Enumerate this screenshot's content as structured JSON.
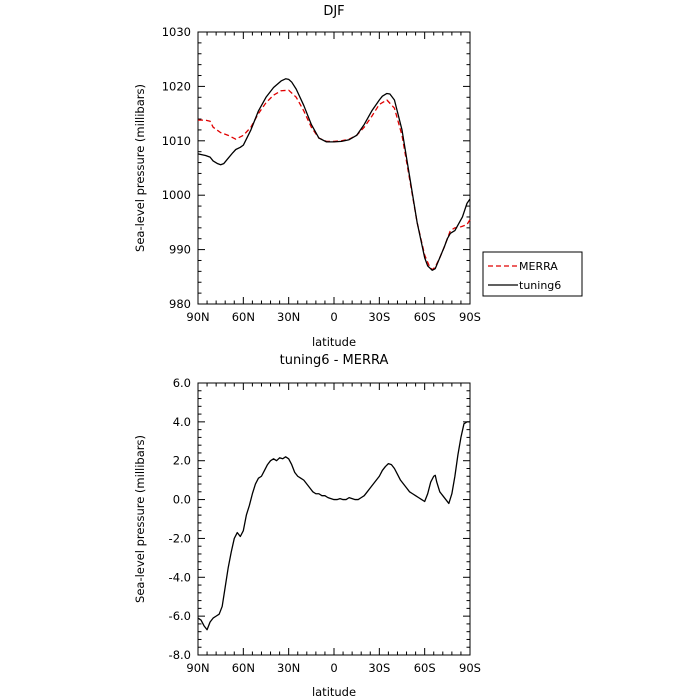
{
  "chart_data": [
    {
      "type": "line",
      "title": "DJF",
      "xlabel": "latitude",
      "ylabel": "Sea-level pressure (millibars)",
      "xlim": [
        90,
        -90
      ],
      "ylim": [
        980,
        1030
      ],
      "x_ticks": [
        90,
        60,
        30,
        0,
        -30,
        -60,
        -90
      ],
      "x_tick_labels": [
        "90N",
        "60N",
        "30N",
        "0",
        "30S",
        "60S",
        "90S"
      ],
      "y_ticks": [
        980,
        990,
        1000,
        1010,
        1020,
        1030
      ],
      "y_tick_labels": [
        "980",
        "990",
        "1000",
        "1010",
        "1020",
        "1030"
      ],
      "legend_position": "right",
      "series": [
        {
          "name": "MERRA",
          "color": "#e00000",
          "dash": "dashed",
          "x": [
            90,
            85,
            82,
            80,
            75,
            70,
            65,
            60,
            55,
            50,
            45,
            40,
            35,
            30,
            25,
            20,
            15,
            10,
            5,
            0,
            -5,
            -10,
            -15,
            -20,
            -25,
            -30,
            -35,
            -40,
            -45,
            -50,
            -55,
            -60,
            -63,
            -65,
            -67,
            -70,
            -73,
            -75,
            -77,
            -80,
            -83,
            -85,
            -88,
            -90
          ],
          "y": [
            1013.8,
            1013.8,
            1013.6,
            1012.5,
            1011.5,
            1011.0,
            1010.3,
            1011.0,
            1012.5,
            1015.0,
            1017.0,
            1018.4,
            1019.2,
            1019.3,
            1018.0,
            1015.5,
            1012.5,
            1010.5,
            1009.9,
            1009.9,
            1010.0,
            1010.3,
            1011.0,
            1012.5,
            1014.5,
            1016.7,
            1017.5,
            1016.0,
            1011.0,
            1003.0,
            995.0,
            989.0,
            987.0,
            986.3,
            986.8,
            988.5,
            990.5,
            992.0,
            993.5,
            994.0,
            994.1,
            994.3,
            994.6,
            995.5
          ]
        },
        {
          "name": "tuning6",
          "color": "#000000",
          "dash": "solid",
          "x": [
            90,
            85,
            82,
            80,
            77,
            75,
            73,
            70,
            67,
            65,
            62,
            60,
            55,
            50,
            45,
            40,
            35,
            32,
            30,
            28,
            25,
            20,
            15,
            10,
            5,
            0,
            -5,
            -10,
            -15,
            -20,
            -25,
            -30,
            -32,
            -35,
            -37,
            -40,
            -45,
            -50,
            -55,
            -60,
            -62,
            -65,
            -67,
            -70,
            -73,
            -75,
            -77,
            -80,
            -85,
            -88,
            -90
          ],
          "y": [
            1007.6,
            1007.3,
            1007.0,
            1006.3,
            1005.8,
            1005.6,
            1005.8,
            1006.8,
            1007.8,
            1008.4,
            1008.8,
            1009.2,
            1012.0,
            1015.5,
            1018.0,
            1019.8,
            1021.0,
            1021.4,
            1021.3,
            1020.8,
            1019.5,
            1016.5,
            1013.0,
            1010.5,
            1009.8,
            1009.8,
            1009.9,
            1010.2,
            1011.0,
            1013.0,
            1015.5,
            1017.5,
            1018.2,
            1018.7,
            1018.6,
            1017.5,
            1012.0,
            1003.5,
            995.0,
            988.5,
            987.0,
            986.2,
            986.5,
            988.5,
            990.5,
            992.0,
            993.0,
            993.5,
            996.0,
            998.5,
            999.3
          ]
        }
      ]
    },
    {
      "type": "line",
      "title": "tuning6 - MERRA",
      "xlabel": "latitude",
      "ylabel": "Sea-level pressure (millibars)",
      "xlim": [
        90,
        -90
      ],
      "ylim": [
        -8,
        6
      ],
      "x_ticks": [
        90,
        60,
        30,
        0,
        -30,
        -60,
        -90
      ],
      "x_tick_labels": [
        "90N",
        "60N",
        "30N",
        "0",
        "30S",
        "60S",
        "90S"
      ],
      "y_ticks": [
        -8,
        -6,
        -4,
        -2,
        0,
        2,
        4,
        6
      ],
      "y_tick_labels": [
        "-8.0",
        "-6.0",
        "-4.0",
        "-2.0",
        "0.0",
        "2.0",
        "4.0",
        "6.0"
      ],
      "series": [
        {
          "name": "tuning6 - MERRA",
          "color": "#000000",
          "dash": "solid",
          "x": [
            90,
            88,
            86,
            84,
            82,
            80,
            78,
            76,
            74,
            72,
            70,
            68,
            66,
            64,
            62,
            60,
            58,
            56,
            54,
            52,
            50,
            48,
            46,
            44,
            42,
            40,
            38,
            36,
            34,
            32,
            30,
            28,
            26,
            24,
            22,
            20,
            18,
            16,
            14,
            12,
            10,
            8,
            6,
            4,
            2,
            0,
            -2,
            -4,
            -6,
            -8,
            -10,
            -12,
            -14,
            -16,
            -18,
            -20,
            -22,
            -24,
            -26,
            -28,
            -30,
            -32,
            -34,
            -36,
            -38,
            -40,
            -42,
            -44,
            -46,
            -48,
            -50,
            -52,
            -54,
            -56,
            -58,
            -60,
            -62,
            -64,
            -66,
            -67,
            -68,
            -70,
            -71,
            -72,
            -74,
            -76,
            -78,
            -80,
            -82,
            -84,
            -86,
            -88,
            -90
          ],
          "y": [
            -6.1,
            -6.2,
            -6.5,
            -6.7,
            -6.3,
            -6.1,
            -6.0,
            -5.9,
            -5.5,
            -4.5,
            -3.5,
            -2.7,
            -2.0,
            -1.7,
            -1.9,
            -1.6,
            -0.8,
            -0.3,
            0.3,
            0.8,
            1.1,
            1.2,
            1.5,
            1.8,
            2.0,
            2.1,
            2.0,
            2.15,
            2.1,
            2.2,
            2.1,
            1.8,
            1.4,
            1.2,
            1.1,
            1.0,
            0.8,
            0.6,
            0.4,
            0.3,
            0.3,
            0.2,
            0.2,
            0.1,
            0.05,
            0.0,
            0.0,
            0.05,
            0.0,
            0.0,
            0.1,
            0.05,
            0.0,
            0.0,
            0.1,
            0.2,
            0.4,
            0.6,
            0.8,
            1.0,
            1.2,
            1.5,
            1.7,
            1.85,
            1.8,
            1.6,
            1.3,
            1.0,
            0.8,
            0.6,
            0.4,
            0.3,
            0.2,
            0.1,
            0.0,
            -0.1,
            0.3,
            0.9,
            1.2,
            1.25,
            0.9,
            0.4,
            0.3,
            0.2,
            0.0,
            -0.2,
            0.3,
            1.2,
            2.3,
            3.2,
            3.9,
            4.0,
            4.0
          ]
        }
      ]
    }
  ]
}
